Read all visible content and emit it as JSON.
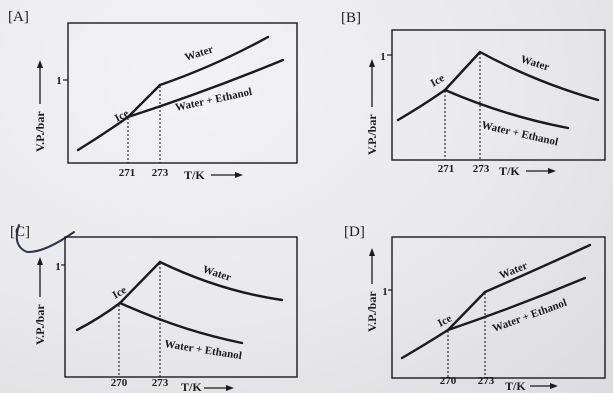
{
  "panels": {
    "A": {
      "label": "[A]",
      "y_axis_label": "V.P./bar",
      "y_tick": "1",
      "x_ticks": [
        "271",
        "273"
      ],
      "x_axis_label": "T/K",
      "curve_labels": {
        "ice": "Ice",
        "water": "Water",
        "water_ethanol": "Water + Ethanol"
      }
    },
    "B": {
      "label": "[B]",
      "y_axis_label": "V.P./bar",
      "y_tick": "1",
      "x_ticks": [
        "271",
        "273"
      ],
      "x_axis_label": "T/K",
      "curve_labels": {
        "ice": "Ice",
        "water": "Water",
        "water_ethanol": "Water + Ethanol"
      }
    },
    "C": {
      "label": "[C]",
      "y_axis_label": "V.P./bar",
      "y_tick": "1",
      "x_ticks": [
        "270",
        "273"
      ],
      "x_axis_label": "T/K",
      "curve_labels": {
        "ice": "Ice",
        "water": "Water",
        "water_ethanol": "Water + Ethanol"
      }
    },
    "D": {
      "label": "[D]",
      "y_axis_label": "V.P./bar",
      "y_tick": "1",
      "x_ticks": [
        "270",
        "273"
      ],
      "x_axis_label": "T/K",
      "curve_labels": {
        "ice": "Ice",
        "water": "Water",
        "water_ethanol": "Water + Ethanol"
      }
    }
  },
  "colors": {
    "ink": "#1b1b1d",
    "paper": "#e9e9ec",
    "pen": "#2a3350"
  }
}
